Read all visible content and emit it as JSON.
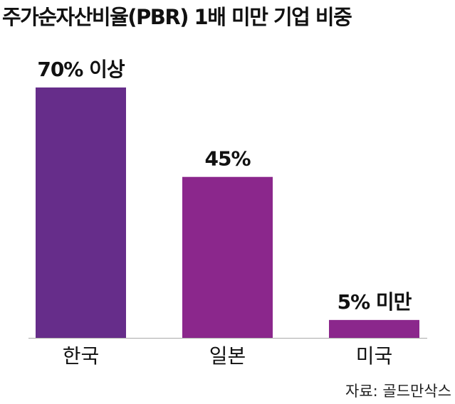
{
  "chart_data": {
    "type": "bar",
    "title": "주가순자산비율(PBR) 1배 미만 기업 비중",
    "categories": [
      "한국",
      "일본",
      "미국"
    ],
    "values": [
      70,
      45,
      5
    ],
    "value_labels": [
      "70% 이상",
      "45%",
      "5% 미만"
    ],
    "colors": [
      "#662d8a",
      "#8b278c",
      "#8b278c"
    ],
    "source": "자료: 골드만삭스"
  }
}
